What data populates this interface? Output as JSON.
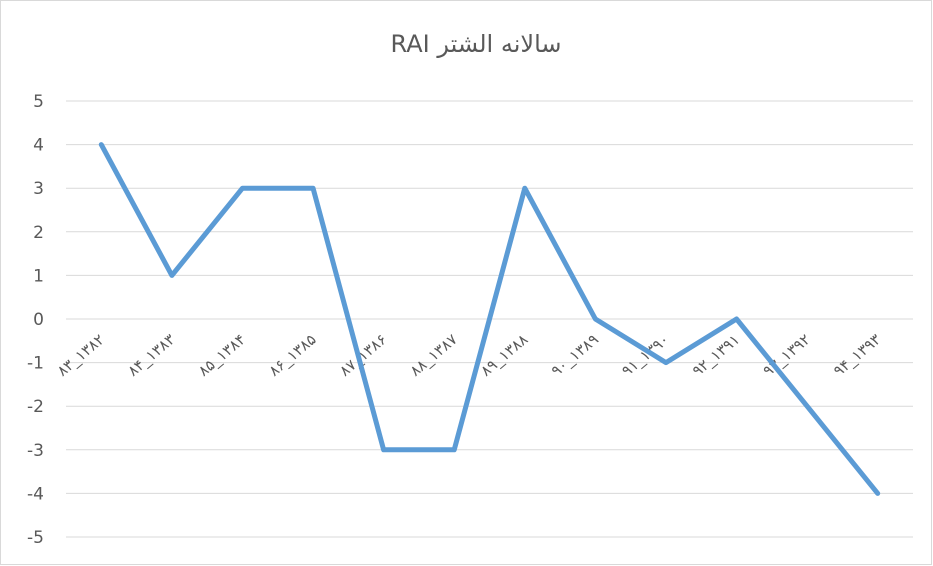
{
  "chart_data": {
    "type": "line",
    "title": "سالانه الشتر RAI",
    "categories": [
      "۸۳_۱۳۸۲",
      "۸۴_۱۳۸۳",
      "۸۵_۱۳۸۴",
      "۸۶_۱۳۸۵",
      "۸۷_۱۳۸۶",
      "۸۸_۱۳۸۷",
      "۸۹_۱۳۸۸",
      "۹۰_۱۳۸۹",
      "۹۱_۱۳۹۰",
      "۹۲_۱۳۹۱",
      "۹۳_۱۳۹۲",
      "۹۴_۱۳۹۳"
    ],
    "series": [
      {
        "name": "RAI",
        "color": "#5b9bd5",
        "values": [
          4,
          1,
          3,
          3,
          -3,
          -3,
          3,
          0,
          -1,
          0,
          -2,
          -4
        ]
      }
    ],
    "ylim": [
      -5,
      5
    ],
    "yticks": [
      -5,
      -4,
      -3,
      -2,
      -1,
      0,
      1,
      2,
      3,
      4,
      5
    ],
    "grid": true
  }
}
